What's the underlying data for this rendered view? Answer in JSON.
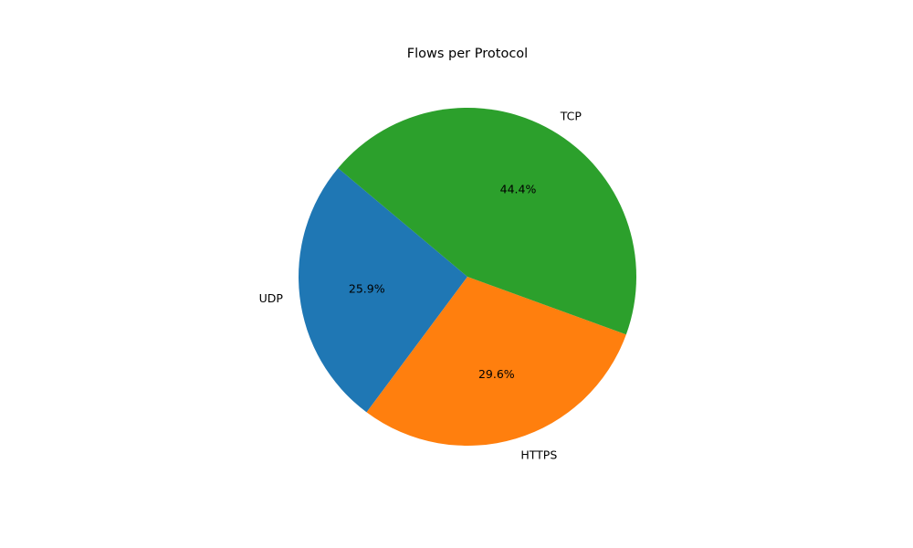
{
  "chart_data": {
    "type": "pie",
    "title": "Flows per Protocol",
    "labels": [
      "UDP",
      "HTTPS",
      "TCP"
    ],
    "values": [
      25.9,
      29.6,
      44.4
    ],
    "percent_labels": [
      "25.9%",
      "29.6%",
      "44.4%"
    ],
    "colors": [
      "#1f77b4",
      "#ff7f0e",
      "#2ca02c"
    ],
    "start_angle_deg": 140,
    "direction": "counterclockwise",
    "legend": "none"
  }
}
